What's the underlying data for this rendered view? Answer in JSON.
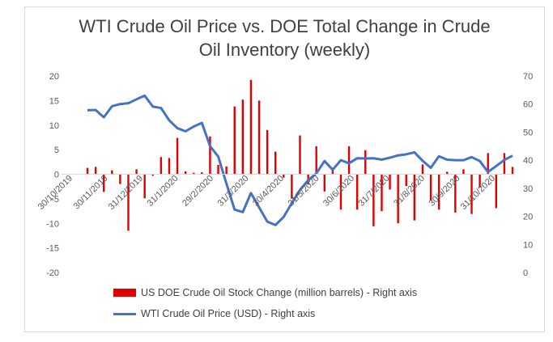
{
  "chart_data": {
    "type": "bar+line",
    "title_lines": [
      "WTI Crude Oil Price vs. DOE Total Change in Crude",
      "Oil Inventory (weekly)"
    ],
    "left_axis": {
      "min": -20,
      "max": 20,
      "ticks": [
        "20",
        "15",
        "10",
        "5",
        "0",
        "-5",
        "-10",
        "-15",
        "-20"
      ]
    },
    "right_axis": {
      "min": 0,
      "max": 70,
      "ticks": [
        "70",
        "60",
        "50",
        "40",
        "30",
        "20",
        "10",
        "0"
      ]
    },
    "x_tick_labels": [
      "30/10/2019",
      "30/11/2019",
      "31/12/2019",
      "31/1/2020",
      "29/2/2020",
      "31/3/2020",
      "30/4/2020",
      "31/5/2020",
      "30/6/2020",
      "31/7/2020",
      "31/8/2020",
      "30/9/2020",
      "31/10/2020"
    ],
    "series": [
      {
        "name": "US DOE Crude Oil Stock Change (million barrels) - Right axis",
        "kind": "bar",
        "color": "#e00000",
        "values": [
          1.3,
          1.5,
          -3.6,
          0.8,
          -2.0,
          -11.5,
          1.0,
          -4.9,
          -0.3,
          3.5,
          3.3,
          7.4,
          0.6,
          0.3,
          0.4,
          7.7,
          1.9,
          1.6,
          13.8,
          15.2,
          19.2,
          15.0,
          9.0,
          4.6,
          -0.7,
          -5.0,
          7.9,
          -2.1,
          5.7,
          -3.5,
          1.3,
          -7.2,
          5.7,
          -7.2,
          4.9,
          -10.6,
          -7.5,
          -3.1,
          -10.0,
          -2.4,
          -9.4,
          2.0,
          -5.4,
          -7.2,
          0.5,
          -7.8,
          1.0,
          -8.1,
          -2.7,
          4.3,
          -6.9,
          4.3,
          1.5
        ]
      },
      {
        "name": "WTI Crude Oil Price (USD) - Right axis",
        "kind": "line",
        "color": "#4472c4",
        "values": [
          57.8,
          57.9,
          55.3,
          59.2,
          60.0,
          60.3,
          61.7,
          63.0,
          59.1,
          58.6,
          54.2,
          51.4,
          50.3,
          52.0,
          53.3,
          45.0,
          41.3,
          31.7,
          22.4,
          21.5,
          28.3,
          23.2,
          18.1,
          16.9,
          19.8,
          24.7,
          29.4,
          32.9,
          35.3,
          39.7,
          36.6,
          40.0,
          38.9,
          40.7,
          40.6,
          40.7,
          40.2,
          40.9,
          41.7,
          42.1,
          42.8,
          39.8,
          37.3,
          41.4,
          40.2,
          40.0,
          40.0,
          41.1,
          39.7,
          35.8,
          37.9,
          40.1,
          41.6
        ]
      }
    ]
  }
}
